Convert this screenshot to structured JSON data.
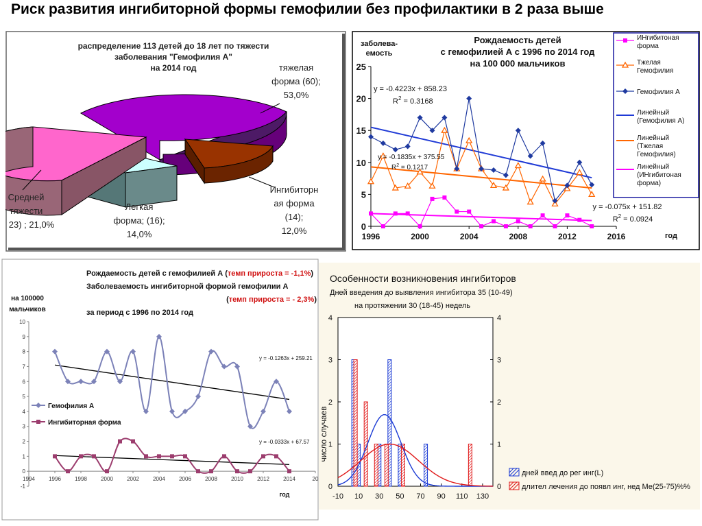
{
  "page_title": "Риск развития ингибиторной формы гемофилии без профилактики в 2 раза выше",
  "chart_data": [
    {
      "type": "pie",
      "title_lines": [
        "распределение 113 детей  до 18 лет по тяжести",
        "заболевания \"Гемофилия А\"",
        "на 2014 год"
      ],
      "slices": [
        {
          "label_lines": [
            "тяжелая",
            "форма (60);",
            "53,0%"
          ],
          "value": 53.0,
          "color": "#9900cc"
        },
        {
          "label_lines": [
            "Ингибиторн",
            "ая форма",
            "(14);",
            "12,0%"
          ],
          "value": 12.0,
          "color": "#993300"
        },
        {
          "label_lines": [
            "Легкая",
            "форма; (16);",
            "14,0%"
          ],
          "value": 14.0,
          "color": "#ccffff"
        },
        {
          "label_lines": [
            "Средней",
            "тяжести",
            "23) ; 21,0%"
          ],
          "value": 21.0,
          "color": "#ff66cc"
        }
      ]
    },
    {
      "type": "line",
      "title_lines": [
        "Рождаемость детей",
        "с гемофилией А с 1996 по 2014 год",
        "на 100 000 мальчиков"
      ],
      "ylabel_lines": [
        "заболева-",
        "емость"
      ],
      "xlabel": "год",
      "xlim": [
        1996,
        2016
      ],
      "ylim": [
        0,
        25
      ],
      "x_ticks": [
        "1996",
        "2000",
        "2004",
        "2008",
        "2012",
        "2016"
      ],
      "y_ticks": [
        "0",
        "5",
        "10",
        "15",
        "20",
        "25"
      ],
      "x": [
        1996,
        1997,
        1998,
        1999,
        2000,
        2001,
        2002,
        2003,
        2004,
        2005,
        2006,
        2007,
        2008,
        2009,
        2010,
        2011,
        2012,
        2013,
        2014
      ],
      "series": [
        {
          "name": "ИНгибитоная форма",
          "color": "#ff00ff",
          "marker": "square",
          "values": [
            2,
            0,
            2,
            2,
            0,
            4.3,
            4.5,
            2.3,
            2.3,
            0,
            0.8,
            0,
            0.8,
            0,
            1.7,
            0,
            1.7,
            1,
            0
          ]
        },
        {
          "name": "Тжелая Гемофилия",
          "color": "#ff6600",
          "marker": "triangle",
          "values": [
            7,
            11,
            6,
            6.3,
            8.5,
            6.3,
            15,
            9,
            13.4,
            9,
            6.4,
            6,
            9.5,
            3.8,
            7.4,
            3.5,
            5.9,
            8.4,
            5
          ]
        },
        {
          "name": "Гемофилия А",
          "color": "#1f3aa0",
          "marker": "diamond",
          "values": [
            14,
            13,
            12,
            12.5,
            17,
            15,
            17,
            9,
            20,
            9,
            8.8,
            8,
            15,
            11,
            13,
            4,
            6.4,
            10,
            6.5
          ]
        }
      ],
      "trendlines": [
        {
          "name": "Линейный (Гемофилия А)",
          "color": "#1f3ad6",
          "y_start": 15.5,
          "y_end": 7.6,
          "equation": "y = -0.4223x + 858.23",
          "r2": "0.3168"
        },
        {
          "name": "Линейный (Тжелая Гемофилия)",
          "color": "#ff6600",
          "y_start": 9.3,
          "y_end": 6.0,
          "equation": "y = -0.1835x + 375.55",
          "r2": "0.1217"
        },
        {
          "name": "Линейный (ИНгибитоная форма)",
          "color": "#ff00ff",
          "y_start": 2.0,
          "y_end": 0.9,
          "equation": "y = -0.075x + 151.82",
          "r2": "0.0924"
        }
      ]
    },
    {
      "type": "line",
      "title_lines": [
        "Рождаемость детей с гемофилией А (",
        "темп прироста = -1,1%",
        ")",
        "Заболеваемость ингибиторной формой гемофилии А",
        "(",
        "темп прироста = - 2,3%",
        ")",
        "за период с 1996 по 2014 год"
      ],
      "ylabel_lines": [
        "на 100000",
        "мальчиков"
      ],
      "xlabel": "год",
      "xlim": [
        1994,
        2016
      ],
      "ylim": [
        -1,
        10
      ],
      "x_ticks": [
        "1994",
        "1996",
        "1998",
        "2000",
        "2002",
        "2004",
        "2006",
        "2008",
        "2010",
        "2012",
        "2014",
        "20"
      ],
      "y_ticks": [
        "-1",
        "0",
        "1",
        "2",
        "3",
        "4",
        "5",
        "6",
        "7",
        "8",
        "9",
        "10"
      ],
      "x": [
        1996,
        1997,
        1998,
        1999,
        2000,
        2001,
        2002,
        2003,
        2004,
        2005,
        2006,
        2007,
        2008,
        2009,
        2010,
        2011,
        2012,
        2013,
        2014
      ],
      "series": [
        {
          "name": "Гемофилия А",
          "color": "#7c82b8",
          "marker": "diamond",
          "values": [
            8,
            6,
            6,
            6,
            8,
            6,
            8,
            4,
            9,
            4,
            4,
            5,
            8,
            7,
            7,
            3,
            4,
            6,
            4
          ]
        },
        {
          "name": "Ингибиторная форма",
          "color": "#9c3d6e",
          "marker": "square",
          "values": [
            1,
            0,
            1,
            1,
            0,
            2,
            2,
            1,
            1,
            1,
            1,
            0,
            0,
            1,
            0,
            0,
            1,
            1,
            0
          ]
        }
      ],
      "trendlines": [
        {
          "color": "#000000",
          "y_start": 7.1,
          "y_end": 4.8,
          "equation": "y = -0.1263x + 259.21"
        },
        {
          "color": "#000000",
          "y_start": 1.05,
          "y_end": 0.45,
          "equation": "y = -0.0333x + 67.57"
        }
      ]
    },
    {
      "type": "bar",
      "title": "Особенности возникновения ингибиторов",
      "subtitle_lines": [
        "Дней введения до выявления ингибитора 35 (10-49)",
        "на протяжении 30 (18-45) недель"
      ],
      "ylabel": "число случаев",
      "xlim": [
        -10,
        140
      ],
      "ylim": [
        0,
        4
      ],
      "x_ticks": [
        "-10",
        "10",
        "30",
        "50",
        "70",
        "90",
        "110",
        "130"
      ],
      "y_ticks": [
        "0",
        "1",
        "2",
        "3",
        "4"
      ],
      "series": [
        {
          "name": "дней введ до рег инг(L)",
          "color": "#1a3ad4",
          "x": [
            5,
            10,
            30,
            40,
            50,
            75
          ],
          "values": [
            3,
            1,
            1,
            3,
            1,
            1
          ]
        },
        {
          "name": "длител лечения до появл инг, нед Ме(25-75)%%",
          "color": "#e01a1a",
          "x": [
            7,
            17,
            27,
            37,
            53,
            118
          ],
          "values": [
            3,
            2,
            1,
            1,
            1,
            1
          ]
        }
      ],
      "curves": [
        {
          "color": "#1a3ad4",
          "mean": 35,
          "sd": 16,
          "peak": 1.7
        },
        {
          "color": "#e01a1a",
          "mean": 40,
          "sd": 28,
          "peak": 1.0
        }
      ]
    }
  ]
}
